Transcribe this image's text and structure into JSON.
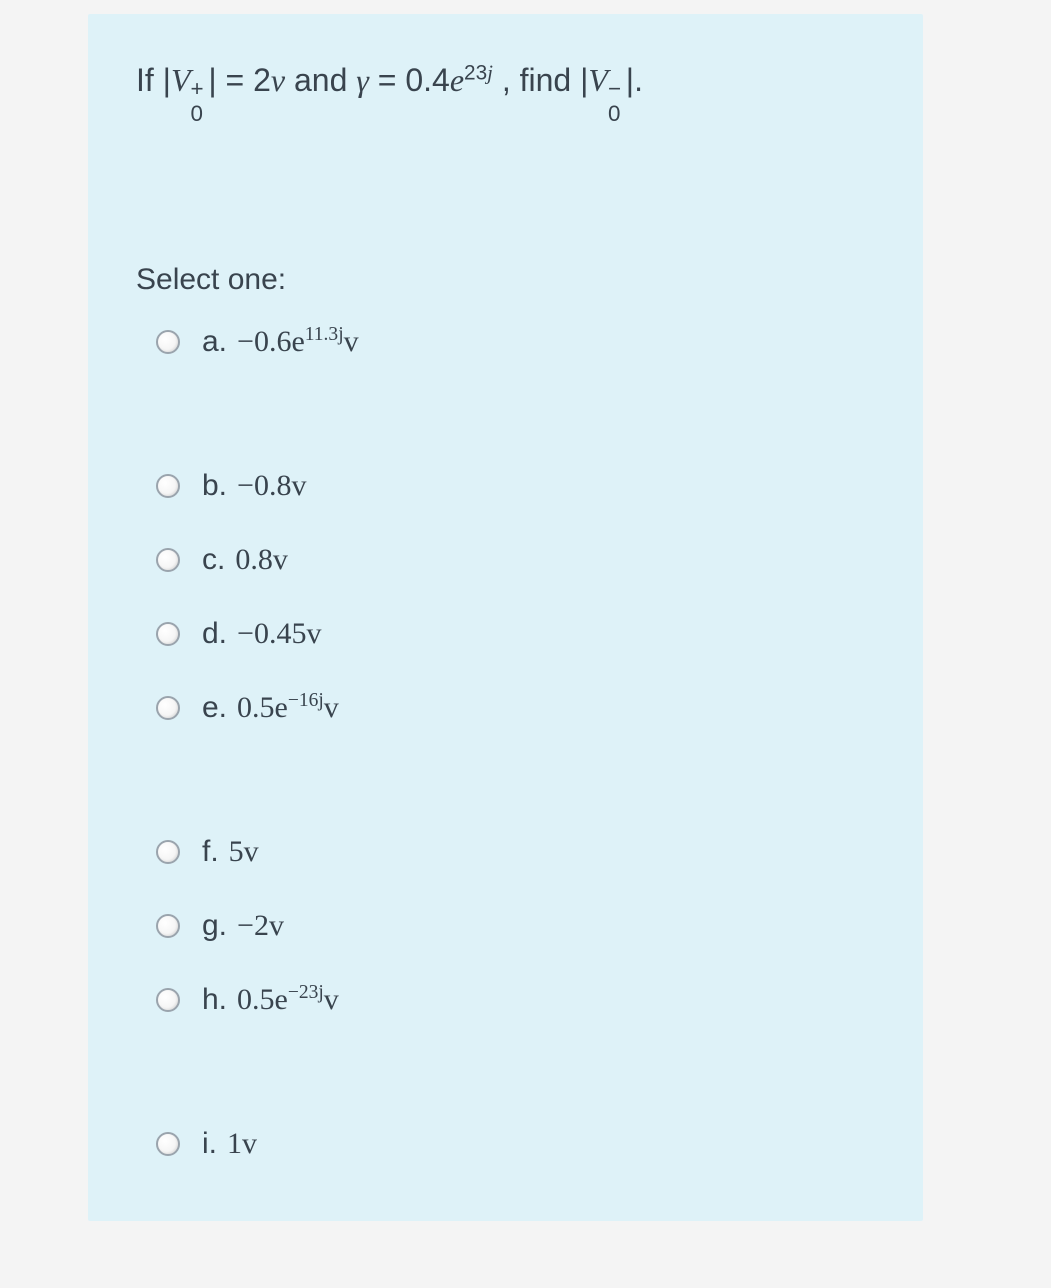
{
  "card": {
    "background_color": "#def2f8",
    "text_color": "#39444e"
  },
  "question": {
    "prefix": "If ",
    "lhs_html": "|<span class='mi'>V</span><span class='sup-container'><span class='stacked-sup'>+</span><span class='stacked-sub'>0</span></span>&nbsp;&nbsp;| = 2<span class='mi'>v</span>",
    "and": " and ",
    "gamma_html": "<span class='mi'>&gamma;</span> = 0.4<span class='mi'>e</span><sup>23<span class='mi'>j</span></sup>",
    "find": ", find ",
    "rhs_html": "|<span class='mi'>V</span><span class='sup-container'><span class='stacked-sup'>&minus;</span><span class='stacked-sub'>0</span></span>&nbsp;&nbsp;|.",
    "fontsize": 32
  },
  "select_label": "Select one:",
  "options": [
    {
      "letter": "a.",
      "html": "&minus;0.6<span class='mi'>e</span><sup>11.3<span class='mi'>j</span></sup><span class='mi'>v</span>",
      "gap_after": "large"
    },
    {
      "letter": "b.",
      "html": "&minus;0.8<span class='mi'>v</span>",
      "gap_after": "small"
    },
    {
      "letter": "c.",
      "html": "0.8<span class='mi'>v</span>",
      "gap_after": "small"
    },
    {
      "letter": "d.",
      "html": "&minus;0.45<span class='mi'>v</span>",
      "gap_after": "small"
    },
    {
      "letter": "e.",
      "html": "0.5<span class='mi'>e</span><sup>&minus;16<span class='mi'>j</span></sup><span class='mi'>v</span>",
      "gap_after": "large"
    },
    {
      "letter": "f.",
      "html": "5<span class='mi'>v</span>",
      "gap_after": "small"
    },
    {
      "letter": "g.",
      "html": "&minus;2<span class='mi'>v</span>",
      "gap_after": "small"
    },
    {
      "letter": "h.",
      "html": "0.5<span class='mi'>e</span><sup>&minus;23<span class='mi'>j</span></sup><span class='mi'>v</span>",
      "gap_after": "large"
    },
    {
      "letter": "i.",
      "html": "1<span class='mi'>v</span>",
      "gap_after": "none"
    }
  ]
}
